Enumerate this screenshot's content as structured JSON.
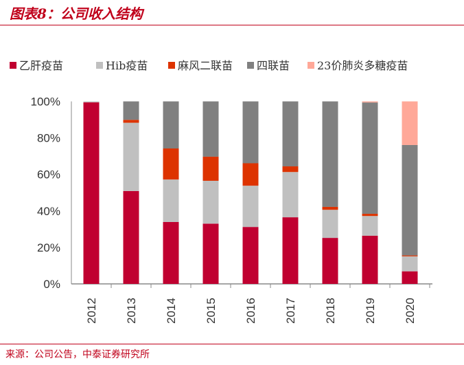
{
  "title": "图表8：公司收入结构",
  "source": "来源：公司公告，中泰证券研究所",
  "chart_data": {
    "type": "bar",
    "stacked": true,
    "categories": [
      "2012",
      "2013",
      "2014",
      "2015",
      "2016",
      "2017",
      "2018",
      "2019",
      "2020"
    ],
    "ylim": [
      0,
      100
    ],
    "yticks": [
      "0%",
      "20%",
      "40%",
      "60%",
      "80%",
      "100%"
    ],
    "legend_position": "top",
    "grid": false,
    "series": [
      {
        "name": "乙肝疫苗",
        "color": "#c00030",
        "values": [
          99.5,
          50.9,
          33.9,
          33.0,
          31.2,
          36.5,
          25.2,
          26.4,
          6.9
        ]
      },
      {
        "name": "Hib疫苗",
        "color": "#c0c0c0",
        "values": [
          0.5,
          37.4,
          23.3,
          23.5,
          22.6,
          24.8,
          15.4,
          10.8,
          8.2
        ]
      },
      {
        "name": "麻风二联苗",
        "color": "#dd3300",
        "values": [
          0,
          1.6,
          17.0,
          13.2,
          12.3,
          3.1,
          1.6,
          1.2,
          0.5
        ]
      },
      {
        "name": "四联苗",
        "color": "#808080",
        "values": [
          0,
          10.1,
          25.8,
          30.3,
          33.9,
          35.6,
          57.8,
          61.0,
          60.5
        ]
      },
      {
        "name": "23价肺炎多糖疫苗",
        "color": "#ffa898",
        "values": [
          0,
          0,
          0,
          0,
          0,
          0,
          0,
          0.6,
          23.9
        ]
      }
    ]
  }
}
